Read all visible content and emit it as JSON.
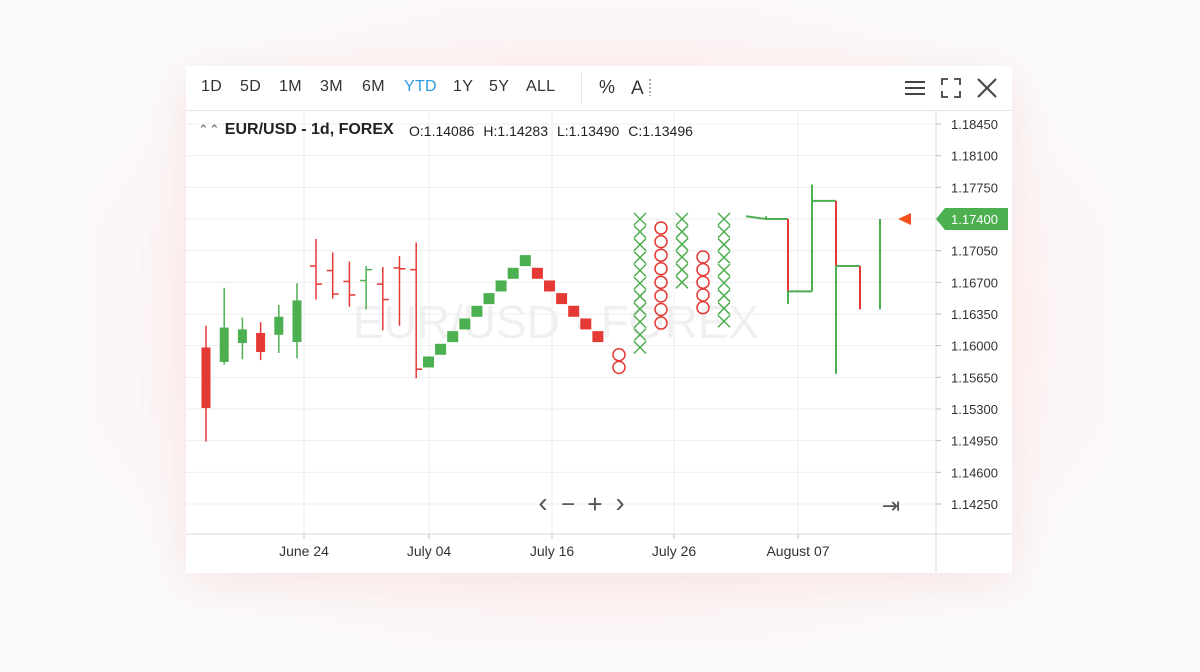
{
  "toolbar": {
    "ranges": [
      "1D",
      "5D",
      "1M",
      "3M",
      "6M",
      "YTD",
      "1Y",
      "5Y",
      "ALL"
    ],
    "active_range": "YTD",
    "percent_label": "%",
    "text_tool_label": "A"
  },
  "header": {
    "title": "EUR/USD - 1d, FOREX",
    "open": "O:1.14086",
    "high": "H:1.14283",
    "low": "L:1.13490",
    "close": "C:1.13496"
  },
  "watermark": "EUR/USD · FOREX",
  "nav": {
    "prev": "‹",
    "zoom_out": "−",
    "zoom_in": "+",
    "next": "›",
    "end": "⇥"
  },
  "colors": {
    "up": "#4caf50",
    "down": "#e53935",
    "accent": "#2a9be0",
    "price_tag": "#4caf50"
  },
  "chart_data": {
    "type": "financial",
    "y_axis": {
      "ticks": [
        "1.18450",
        "1.18100",
        "1.17750",
        "1.17400",
        "1.17050",
        "1.16700",
        "1.16350",
        "1.16000",
        "1.15650",
        "1.15300",
        "1.14950",
        "1.14600",
        "1.14250"
      ],
      "ylim": [
        1.139,
        1.1875
      ]
    },
    "x_axis": {
      "ticks": [
        "June 24",
        "July 04",
        "July 16",
        "July 26",
        "August 07"
      ]
    },
    "current_price": "1.17400",
    "grid": true,
    "candlesticks": [
      {
        "o": 1.1598,
        "h": 1.1622,
        "l": 1.1494,
        "c": 1.1531
      },
      {
        "o": 1.1582,
        "h": 1.1664,
        "l": 1.1579,
        "c": 1.162
      },
      {
        "o": 1.1603,
        "h": 1.1631,
        "l": 1.1585,
        "c": 1.1618
      },
      {
        "o": 1.1614,
        "h": 1.1626,
        "l": 1.1584,
        "c": 1.1593
      },
      {
        "o": 1.1612,
        "h": 1.1645,
        "l": 1.1592,
        "c": 1.1632
      },
      {
        "o": 1.1604,
        "h": 1.1669,
        "l": 1.1586,
        "c": 1.165
      }
    ],
    "ohlc_bars": [
      {
        "o": 1.1688,
        "h": 1.1718,
        "l": 1.1651,
        "c": 1.1668
      },
      {
        "o": 1.1683,
        "h": 1.1703,
        "l": 1.1652,
        "c": 1.1657
      },
      {
        "o": 1.1671,
        "h": 1.1693,
        "l": 1.1643,
        "c": 1.1656
      },
      {
        "o": 1.1672,
        "h": 1.1688,
        "l": 1.164,
        "c": 1.1684
      },
      {
        "o": 1.1668,
        "h": 1.1687,
        "l": 1.1617,
        "c": 1.1651
      },
      {
        "o": 1.1686,
        "h": 1.1699,
        "l": 1.1622,
        "c": 1.1685
      },
      {
        "o": 1.1684,
        "h": 1.1714,
        "l": 1.1564,
        "c": 1.1574
      }
    ],
    "renko": [
      {
        "v": 1.1582,
        "dir": "up"
      },
      {
        "v": 1.1596,
        "dir": "up"
      },
      {
        "v": 1.161,
        "dir": "up"
      },
      {
        "v": 1.1624,
        "dir": "up"
      },
      {
        "v": 1.1638,
        "dir": "up"
      },
      {
        "v": 1.1652,
        "dir": "up"
      },
      {
        "v": 1.1666,
        "dir": "up"
      },
      {
        "v": 1.168,
        "dir": "up"
      },
      {
        "v": 1.1694,
        "dir": "up"
      },
      {
        "v": 1.168,
        "dir": "down"
      },
      {
        "v": 1.1666,
        "dir": "down"
      },
      {
        "v": 1.1652,
        "dir": "down"
      },
      {
        "v": 1.1638,
        "dir": "down"
      },
      {
        "v": 1.1624,
        "dir": "down"
      },
      {
        "v": 1.161,
        "dir": "down"
      }
    ],
    "point_and_figure": [
      {
        "dir": "down",
        "from": 1.159,
        "to": 1.1576
      },
      {
        "dir": "up",
        "from": 1.1598,
        "to": 1.174
      },
      {
        "dir": "down",
        "from": 1.173,
        "to": 1.1625
      },
      {
        "dir": "up",
        "from": 1.167,
        "to": 1.174
      },
      {
        "dir": "down",
        "from": 1.1698,
        "to": 1.1642
      },
      {
        "dir": "up",
        "from": 1.1627,
        "to": 1.174
      }
    ],
    "kagi": [
      {
        "v": 1.1743,
        "dir": "up"
      },
      {
        "v": 1.174,
        "dir": "up"
      },
      {
        "v": 1.1646,
        "dir": "down"
      },
      {
        "v": 1.166,
        "dir": "up"
      },
      {
        "v": 1.1778,
        "dir": "up"
      },
      {
        "v": 1.176,
        "dir": "up"
      },
      {
        "v": 1.1569,
        "dir": "down"
      },
      {
        "v": 1.1688,
        "dir": "up"
      },
      {
        "v": 1.164,
        "dir": "down"
      },
      {
        "v": 1.174,
        "dir": "up"
      }
    ]
  }
}
